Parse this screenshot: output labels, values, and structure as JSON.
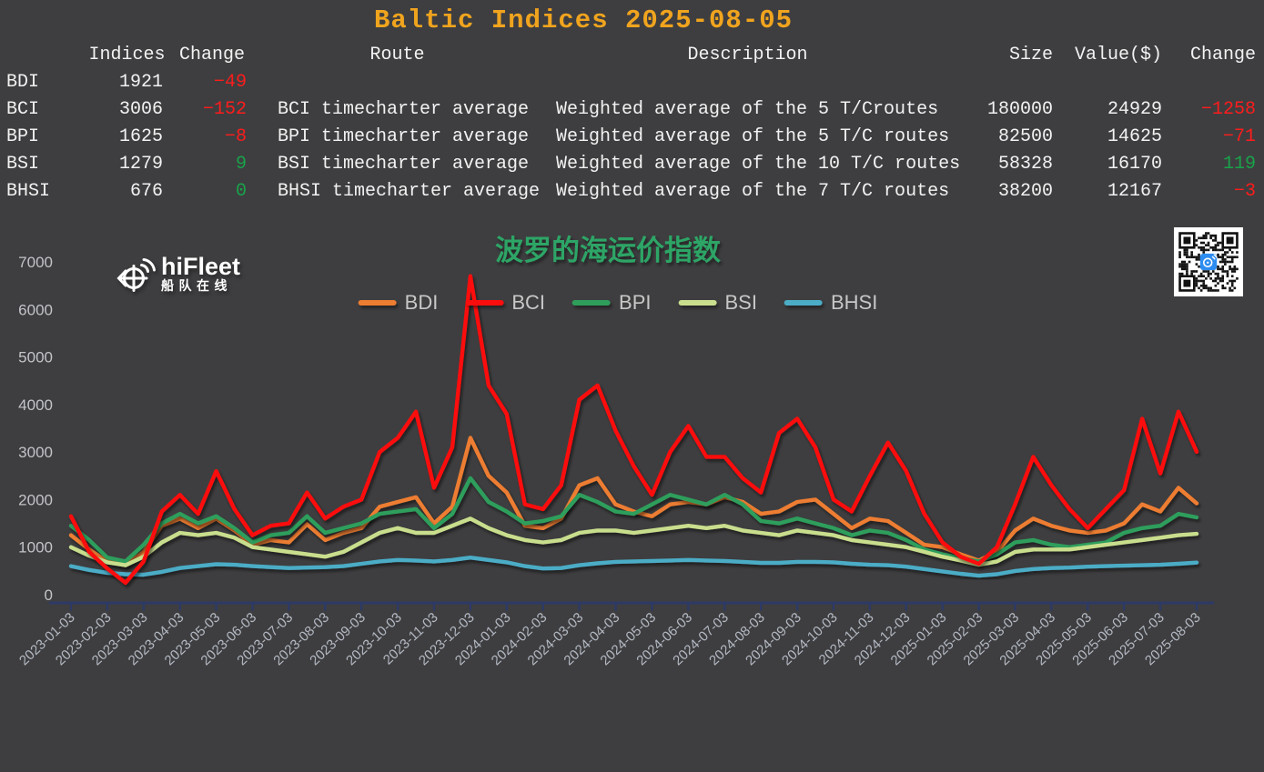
{
  "page_title": "Baltic Indices 2025-08-05",
  "table": {
    "headers": {
      "indices": "Indices",
      "change": "Change",
      "route": "Route",
      "description": "Description",
      "size": "Size",
      "value": "Value($)",
      "change2": "Change"
    },
    "rows": [
      {
        "name": "BDI",
        "index": "1921",
        "change": "−49",
        "route": "",
        "description": "",
        "size": "",
        "value": "",
        "change2": ""
      },
      {
        "name": "BCI",
        "index": "3006",
        "change": "−152",
        "route": "BCI timecharter average",
        "description": "Weighted average of the 5 T/Croutes",
        "size": "180000",
        "value": "24929",
        "change2": "−1258"
      },
      {
        "name": "BPI",
        "index": "1625",
        "change": "−8",
        "route": "BPI timecharter average",
        "description": "Weighted average of the 5 T/C routes",
        "size": "82500",
        "value": "14625",
        "change2": "−71"
      },
      {
        "name": "BSI",
        "index": "1279",
        "change": "9",
        "route": "BSI timecharter average",
        "description": "Weighted average of the 10 T/C routes",
        "size": "58328",
        "value": "16170",
        "change2": "119"
      },
      {
        "name": "BHSI",
        "index": "676",
        "change": "0",
        "route": "BHSI timecharter average",
        "description": "Weighted average of the 7 T/C routes",
        "size": "38200",
        "value": "12167",
        "change2": "−3"
      }
    ]
  },
  "branding": {
    "logo_text": "hiFleet",
    "logo_subtext": "船队在线"
  },
  "chart_data": {
    "type": "line",
    "title": "波罗的海运价指数",
    "ylim": [
      0,
      7000
    ],
    "ytick_step": 1000,
    "grid": false,
    "legend_position": "top-center",
    "sampling": "semi-monthly points, 2023-01-03 to 2025-08-03",
    "x_tick_labels": [
      "2023-01-03",
      "2023-02-03",
      "2023-03-03",
      "2023-04-03",
      "2023-05-03",
      "2023-06-03",
      "2023-07-03",
      "2023-08-03",
      "2023-09-03",
      "2023-10-03",
      "2023-11-03",
      "2023-12-03",
      "2024-01-03",
      "2024-02-03",
      "2024-03-03",
      "2024-04-03",
      "2024-05-03",
      "2024-06-03",
      "2024-07-03",
      "2024-08-03",
      "2024-09-03",
      "2024-10-03",
      "2024-11-03",
      "2024-12-03",
      "2025-01-03",
      "2025-02-03",
      "2025-03-03",
      "2025-04-03",
      "2025-05-03",
      "2025-06-03",
      "2025-07-03",
      "2025-08-03"
    ],
    "series": [
      {
        "name": "BDI",
        "color": "#ED7D31",
        "values": [
          1250,
          950,
          700,
          620,
          900,
          1450,
          1600,
          1400,
          1600,
          1350,
          1050,
          1150,
          1100,
          1480,
          1150,
          1300,
          1400,
          1850,
          1950,
          2050,
          1500,
          1850,
          3300,
          2500,
          2150,
          1450,
          1400,
          1600,
          2300,
          2450,
          1900,
          1750,
          1650,
          1900,
          1950,
          1900,
          2050,
          1950,
          1700,
          1750,
          1950,
          2000,
          1700,
          1400,
          1600,
          1550,
          1300,
          1050,
          1000,
          850,
          720,
          900,
          1350,
          1600,
          1450,
          1350,
          1300,
          1350,
          1500,
          1900,
          1750,
          2250,
          1921
        ]
      },
      {
        "name": "BCI",
        "color": "#FB0D0D",
        "values": [
          1650,
          900,
          550,
          250,
          700,
          1750,
          2100,
          1700,
          2600,
          1800,
          1250,
          1450,
          1500,
          2150,
          1600,
          1850,
          2000,
          3000,
          3300,
          3850,
          2250,
          3100,
          6700,
          4400,
          3800,
          1900,
          1800,
          2300,
          4100,
          4400,
          3450,
          2700,
          2100,
          3000,
          3550,
          2900,
          2900,
          2450,
          2150,
          3400,
          3700,
          3100,
          2000,
          1750,
          2500,
          3200,
          2600,
          1700,
          1100,
          800,
          650,
          1000,
          1900,
          2900,
          2300,
          1800,
          1400,
          1800,
          2200,
          3700,
          2550,
          3850,
          3006
        ]
      },
      {
        "name": "BPI",
        "color": "#2F9E5B",
        "values": [
          1450,
          1150,
          780,
          700,
          1050,
          1500,
          1700,
          1500,
          1650,
          1400,
          1100,
          1250,
          1300,
          1650,
          1300,
          1400,
          1500,
          1700,
          1750,
          1800,
          1400,
          1700,
          2450,
          1950,
          1750,
          1500,
          1550,
          1650,
          2100,
          1950,
          1750,
          1700,
          1900,
          2100,
          2000,
          1900,
          2100,
          1900,
          1550,
          1500,
          1600,
          1500,
          1400,
          1250,
          1350,
          1300,
          1150,
          950,
          850,
          770,
          700,
          850,
          1100,
          1150,
          1050,
          1000,
          1050,
          1100,
          1300,
          1400,
          1450,
          1700,
          1625
        ]
      },
      {
        "name": "BSI",
        "color": "#C9DE8D",
        "values": [
          1000,
          820,
          680,
          620,
          800,
          1100,
          1300,
          1250,
          1300,
          1200,
          1000,
          950,
          900,
          850,
          800,
          900,
          1100,
          1300,
          1400,
          1300,
          1300,
          1450,
          1600,
          1400,
          1250,
          1150,
          1100,
          1150,
          1300,
          1350,
          1350,
          1300,
          1350,
          1400,
          1450,
          1400,
          1450,
          1350,
          1300,
          1250,
          1350,
          1300,
          1250,
          1150,
          1100,
          1050,
          1000,
          900,
          800,
          720,
          630,
          700,
          900,
          950,
          950,
          950,
          1000,
          1050,
          1100,
          1150,
          1200,
          1250,
          1279
        ]
      },
      {
        "name": "BHSI",
        "color": "#4BACC6",
        "values": [
          600,
          520,
          460,
          430,
          420,
          480,
          560,
          600,
          640,
          630,
          600,
          580,
          560,
          570,
          580,
          600,
          650,
          700,
          730,
          720,
          700,
          730,
          780,
          730,
          680,
          600,
          550,
          560,
          620,
          660,
          690,
          700,
          710,
          720,
          730,
          720,
          710,
          690,
          670,
          670,
          690,
          690,
          680,
          650,
          630,
          620,
          590,
          540,
          490,
          440,
          400,
          430,
          500,
          540,
          560,
          570,
          590,
          600,
          610,
          620,
          630,
          650,
          676
        ]
      }
    ]
  },
  "colors": {
    "background": "#3e3e40",
    "title": "#f0a41e",
    "table_text": "#f2f2f2",
    "positive": "#19a34a",
    "negative": "#fd1c1c",
    "axis": "#2d3a66",
    "x_tick_label": "#b3b8c2",
    "y_tick_label": "#c2c4c8",
    "chart_title": "#2da566",
    "legend_label": "#c7c7c7",
    "qr_logo": "#2d8cf0"
  }
}
